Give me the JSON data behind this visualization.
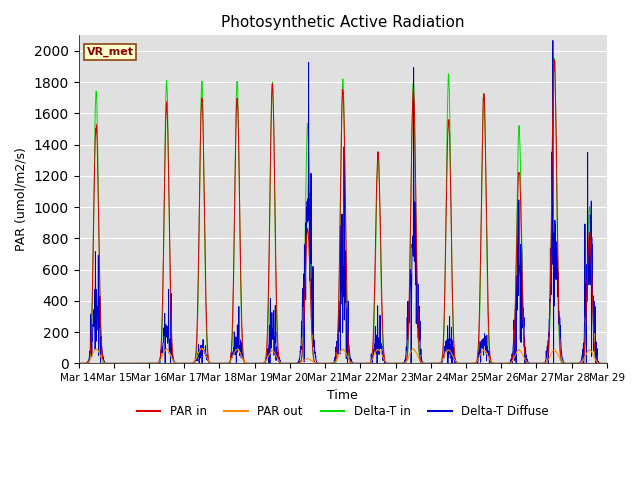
{
  "title": "Photosynthetic Active Radiation",
  "xlabel": "Time",
  "ylabel": "PAR (umol/m2/s)",
  "ylim": [
    0,
    2100
  ],
  "yticks": [
    0,
    200,
    400,
    600,
    800,
    1000,
    1200,
    1400,
    1600,
    1800,
    2000
  ],
  "annotation_text": "VR_met",
  "legend_labels": [
    "PAR in",
    "PAR out",
    "Delta-T in",
    "Delta-T Diffuse"
  ],
  "line_colors": [
    "#dd0000",
    "#ff8c00",
    "#00dd00",
    "#0000cc"
  ],
  "bg_color": "#e0e0e0",
  "n_days": 15,
  "start_day": 14,
  "pts_per_day": 144,
  "par_in_peaks": [
    1520,
    0,
    1660,
    1700,
    1700,
    1780,
    860,
    1740,
    1350,
    1760,
    1560,
    1710,
    1230,
    1940,
    840
  ],
  "par_out_peaks": [
    90,
    0,
    90,
    95,
    90,
    80,
    30,
    90,
    90,
    90,
    85,
    85,
    85,
    85,
    85
  ],
  "dtin_peaks": [
    1740,
    0,
    1800,
    1800,
    1810,
    1800,
    1530,
    1820,
    1320,
    1800,
    1840,
    1730,
    1510,
    1940,
    1000
  ],
  "dtdiff_peaks": [
    350,
    0,
    220,
    100,
    145,
    195,
    920,
    540,
    150,
    760,
    150,
    145,
    600,
    810,
    700
  ],
  "sharpness": 8,
  "noise_seed": 17
}
